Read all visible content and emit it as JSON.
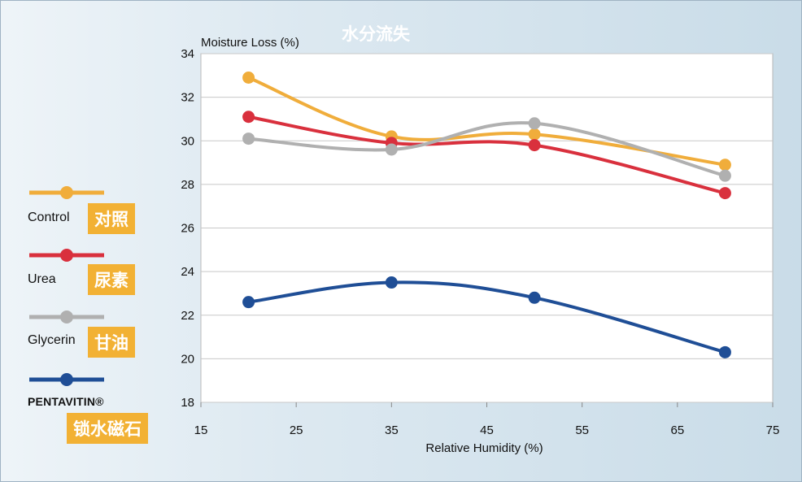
{
  "chart_data": {
    "type": "line",
    "title": "水分流失",
    "ylabel": "Moisture Loss (%)",
    "xlabel": "Relative Humidity (%)",
    "xlim": [
      15,
      75
    ],
    "ylim": [
      18,
      34
    ],
    "xticks": [
      15,
      25,
      35,
      45,
      55,
      65,
      75
    ],
    "yticks": [
      18,
      20,
      22,
      24,
      26,
      28,
      30,
      32,
      34
    ],
    "x": [
      20,
      35,
      50,
      70
    ],
    "grid": "horizontal",
    "legend_position": "left",
    "series": [
      {
        "name": "Control",
        "label_cn": "对照",
        "color": "#f0ad3b",
        "values": [
          32.9,
          30.2,
          30.3,
          28.9
        ]
      },
      {
        "name": "Urea",
        "label_cn": "尿素",
        "color": "#d9303d",
        "values": [
          31.1,
          29.9,
          29.8,
          27.6
        ]
      },
      {
        "name": "Glycerin",
        "label_cn": "甘油",
        "color": "#b0b0b0",
        "values": [
          30.1,
          29.6,
          30.8,
          28.4
        ]
      },
      {
        "name": "PENTAVITIN®",
        "label_cn": "锁水磁石",
        "color": "#1f4e96",
        "values": [
          22.6,
          23.5,
          22.8,
          20.3
        ]
      }
    ]
  }
}
